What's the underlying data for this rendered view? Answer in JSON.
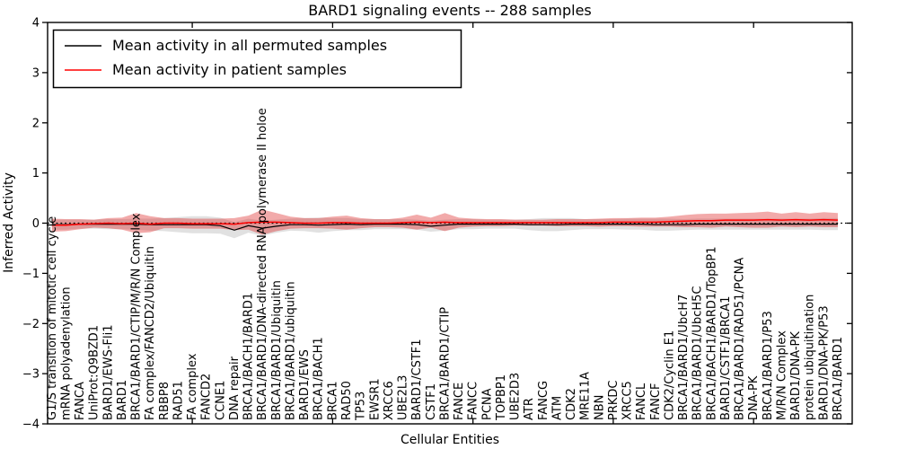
{
  "title": "BARD1 signaling events -- 288 samples",
  "legend": {
    "position": "upper left",
    "items": [
      {
        "label": "Mean activity in all permuted samples",
        "color": "#000000"
      },
      {
        "label": "Mean activity in patient samples",
        "color": "#ff0000"
      }
    ]
  },
  "colors": {
    "permuted_line": "#000000",
    "permuted_band": "#c8c8c8",
    "patient_line": "#ff0000",
    "patient_band": "#dc2020",
    "zero_line": "#000000",
    "spine": "#000000",
    "background": "#ffffff"
  },
  "chart_data": {
    "type": "line",
    "title": "BARD1 signaling events -- 288 samples",
    "xlabel": "Cellular Entities",
    "ylabel": "Inferred Activity",
    "ylim": [
      -4,
      4
    ],
    "grid": false,
    "legend_position": "upper left",
    "zero_line_style": "dotted",
    "x_major_tick_interval": 10,
    "ytick_values": [
      4,
      3,
      2,
      1,
      0,
      -1,
      -2,
      -3,
      -4
    ],
    "ytick_labels": [
      "4",
      "3",
      "2",
      "1",
      "0",
      "−1",
      "−2",
      "−3",
      "−4"
    ],
    "categories": [
      "G1/S transition of mitotic cell cycle",
      "mRNA polyadenylation",
      "FANCA",
      "UniProt:Q9BZD1",
      "BARD1/EWS-Fli1",
      "BARD1",
      "BRCA1/BARD1/CTIP/M/R/N Complex",
      "FA complex/FANCD2/Ubiquitin",
      "RBBP8",
      "RAD51",
      "FA complex",
      "FANCD2",
      "CCNE1",
      "DNA repair",
      "BRCA1/BACH1/BARD1",
      "BRCA1/BARD1/DNA-directed RNA polymerase II holoe",
      "BRCA1/BARD1/Ubiquitin",
      "BRCA1/BARD1/ubiquitin",
      "BARD1/EWS",
      "BRCA1/BACH1",
      "BRCA1",
      "RAD50",
      "TP53",
      "EWSR1",
      "XRCC6",
      "UBE2L3",
      "BARD1/CSTF1",
      "CSTF1",
      "BRCA1/BARD1/CTIP",
      "FANCE",
      "FANCC",
      "PCNA",
      "TOPBP1",
      "UBE2D3",
      "ATR",
      "FANCG",
      "ATM",
      "CDK2",
      "MRE11A",
      "NBN",
      "PRKDC",
      "XRCC5",
      "FANCL",
      "FANCF",
      "CDK2/Cyclin E1",
      "BRCA1/BARD1/UbcH7",
      "BRCA1/BARD1/UbcH5C",
      "BRCA1/BACH1/BARD1/TopBP1",
      "BARD1/CSTF1/BRCA1",
      "BRCA1/BARD1/RAD51/PCNA",
      "DNA-PK",
      "BRCA1/BARD1/P53",
      "M/R/N Complex",
      "BARD1/DNA-PK",
      "protein ubiquitination",
      "BARD1/DNA-PK/P53",
      "BRCA1/BARD1"
    ],
    "series": [
      {
        "name": "Mean activity in all permuted samples",
        "color": "#000000",
        "band_color": "#c8c8c8",
        "band_opacity": 0.55,
        "line_width": 1.2,
        "mean": [
          -0.03,
          -0.03,
          -0.02,
          -0.02,
          -0.02,
          -0.02,
          -0.02,
          -0.03,
          -0.03,
          -0.03,
          -0.03,
          -0.03,
          -0.05,
          -0.14,
          -0.05,
          -0.1,
          -0.06,
          -0.03,
          -0.03,
          -0.04,
          -0.03,
          -0.02,
          -0.03,
          -0.02,
          -0.02,
          -0.02,
          -0.03,
          -0.06,
          -0.04,
          -0.02,
          -0.02,
          -0.02,
          -0.02,
          -0.02,
          -0.03,
          -0.03,
          -0.03,
          -0.02,
          -0.02,
          -0.02,
          -0.02,
          -0.02,
          -0.02,
          -0.03,
          -0.03,
          -0.03,
          -0.02,
          -0.02,
          -0.02,
          -0.02,
          -0.02,
          -0.02,
          -0.02,
          -0.02,
          -0.02,
          -0.02,
          -0.02
        ],
        "std": [
          0.1,
          0.1,
          0.09,
          0.09,
          0.1,
          0.1,
          0.11,
          0.12,
          0.13,
          0.15,
          0.17,
          0.17,
          0.16,
          0.16,
          0.14,
          0.15,
          0.13,
          0.12,
          0.13,
          0.15,
          0.13,
          0.12,
          0.11,
          0.1,
          0.1,
          0.1,
          0.1,
          0.11,
          0.11,
          0.1,
          0.1,
          0.09,
          0.09,
          0.09,
          0.11,
          0.13,
          0.13,
          0.12,
          0.1,
          0.1,
          0.1,
          0.11,
          0.11,
          0.12,
          0.12,
          0.11,
          0.11,
          0.11,
          0.11,
          0.11,
          0.11,
          0.11,
          0.11,
          0.11,
          0.11,
          0.12,
          0.12
        ]
      },
      {
        "name": "Mean activity in patient samples",
        "color": "#ff0000",
        "band_color": "#dc2020",
        "band_opacity": 0.38,
        "line_width": 1.5,
        "mean": [
          -0.04,
          -0.04,
          -0.02,
          -0.01,
          0.0,
          -0.01,
          0.0,
          -0.02,
          0.0,
          0.0,
          -0.01,
          -0.01,
          -0.01,
          -0.02,
          0.01,
          0.02,
          0.02,
          0.01,
          0.0,
          0.0,
          0.01,
          0.01,
          0.0,
          0.0,
          0.0,
          0.01,
          0.02,
          0.01,
          0.02,
          0.01,
          0.01,
          0.01,
          0.01,
          0.01,
          0.01,
          0.01,
          0.01,
          0.01,
          0.01,
          0.01,
          0.02,
          0.02,
          0.02,
          0.02,
          0.03,
          0.04,
          0.05,
          0.05,
          0.06,
          0.06,
          0.06,
          0.07,
          0.06,
          0.07,
          0.06,
          0.07,
          0.06
        ],
        "std": [
          0.13,
          0.12,
          0.1,
          0.08,
          0.1,
          0.12,
          0.2,
          0.16,
          0.1,
          0.1,
          0.1,
          0.1,
          0.1,
          0.12,
          0.14,
          0.25,
          0.18,
          0.12,
          0.1,
          0.1,
          0.12,
          0.14,
          0.1,
          0.08,
          0.08,
          0.1,
          0.15,
          0.1,
          0.18,
          0.1,
          0.08,
          0.07,
          0.07,
          0.06,
          0.06,
          0.06,
          0.07,
          0.07,
          0.07,
          0.08,
          0.08,
          0.08,
          0.09,
          0.09,
          0.1,
          0.12,
          0.13,
          0.14,
          0.13,
          0.14,
          0.15,
          0.16,
          0.13,
          0.15,
          0.13,
          0.15,
          0.14
        ]
      }
    ]
  }
}
